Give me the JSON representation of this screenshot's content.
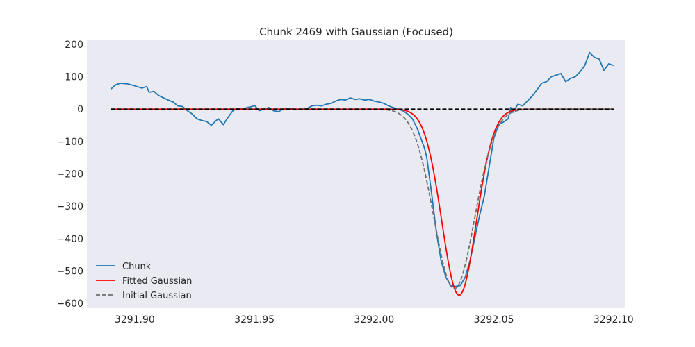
{
  "chart_data": {
    "type": "line",
    "title": "Chunk 2469 with Gaussian (Focused)",
    "xlabel": "",
    "ylabel": "",
    "xlim": [
      3291.88,
      3292.105
    ],
    "ylim": [
      -615,
      215
    ],
    "grid": false,
    "legend_position": "lower-left",
    "plot_background": "#eaeaf2",
    "x_ticks": [
      3291.9,
      3291.95,
      3292.0,
      3292.05,
      3292.1
    ],
    "x_tick_labels": [
      "3291.90",
      "3291.95",
      "3292.00",
      "3292.05",
      "3292.10"
    ],
    "y_ticks": [
      200,
      100,
      0,
      -100,
      -200,
      -300,
      -400,
      -500,
      -600
    ],
    "y_tick_labels": [
      "200",
      "100",
      "0",
      "−100",
      "−200",
      "−300",
      "−400",
      "−500",
      "−600"
    ],
    "series": [
      {
        "name": "Chunk",
        "color": "#1f77b4",
        "style": "solid",
        "points": [
          [
            3291.89,
            62
          ],
          [
            3291.892,
            75
          ],
          [
            3291.894,
            80
          ],
          [
            3291.897,
            78
          ],
          [
            3291.9,
            72
          ],
          [
            3291.903,
            65
          ],
          [
            3291.905,
            70
          ],
          [
            3291.906,
            52
          ],
          [
            3291.908,
            55
          ],
          [
            3291.91,
            42
          ],
          [
            3291.912,
            35
          ],
          [
            3291.914,
            28
          ],
          [
            3291.916,
            22
          ],
          [
            3291.918,
            10
          ],
          [
            3291.92,
            8
          ],
          [
            3291.922,
            -5
          ],
          [
            3291.924,
            -15
          ],
          [
            3291.926,
            -30
          ],
          [
            3291.928,
            -35
          ],
          [
            3291.93,
            -38
          ],
          [
            3291.932,
            -50
          ],
          [
            3291.934,
            -35
          ],
          [
            3291.935,
            -30
          ],
          [
            3291.937,
            -48
          ],
          [
            3291.939,
            -25
          ],
          [
            3291.941,
            -5
          ],
          [
            3291.943,
            2
          ],
          [
            3291.945,
            0
          ],
          [
            3291.947,
            5
          ],
          [
            3291.949,
            8
          ],
          [
            3291.95,
            12
          ],
          [
            3291.952,
            -5
          ],
          [
            3291.954,
            0
          ],
          [
            3291.956,
            5
          ],
          [
            3291.958,
            -5
          ],
          [
            3291.96,
            -8
          ],
          [
            3291.962,
            0
          ],
          [
            3291.965,
            3
          ],
          [
            3291.967,
            -2
          ],
          [
            3291.97,
            0
          ],
          [
            3291.972,
            2
          ],
          [
            3291.974,
            10
          ],
          [
            3291.976,
            12
          ],
          [
            3291.978,
            10
          ],
          [
            3291.98,
            15
          ],
          [
            3291.982,
            18
          ],
          [
            3291.984,
            25
          ],
          [
            3291.986,
            30
          ],
          [
            3291.988,
            28
          ],
          [
            3291.99,
            35
          ],
          [
            3291.992,
            30
          ],
          [
            3291.994,
            32
          ],
          [
            3291.996,
            28
          ],
          [
            3291.998,
            30
          ],
          [
            3292.0,
            25
          ],
          [
            3292.002,
            22
          ],
          [
            3292.004,
            18
          ],
          [
            3292.006,
            10
          ],
          [
            3292.008,
            5
          ],
          [
            3292.01,
            0
          ],
          [
            3292.012,
            -5
          ],
          [
            3292.014,
            -15
          ],
          [
            3292.016,
            -30
          ],
          [
            3292.018,
            -60
          ],
          [
            3292.02,
            -100
          ],
          [
            3292.021,
            -120
          ],
          [
            3292.022,
            -150
          ],
          [
            3292.024,
            -260
          ],
          [
            3292.026,
            -380
          ],
          [
            3292.028,
            -470
          ],
          [
            3292.03,
            -520
          ],
          [
            3292.032,
            -545
          ],
          [
            3292.034,
            -548
          ],
          [
            3292.036,
            -545
          ],
          [
            3292.038,
            -520
          ],
          [
            3292.04,
            -470
          ],
          [
            3292.042,
            -400
          ],
          [
            3292.044,
            -330
          ],
          [
            3292.046,
            -270
          ],
          [
            3292.048,
            -180
          ],
          [
            3292.05,
            -90
          ],
          [
            3292.052,
            -48
          ],
          [
            3292.054,
            -40
          ],
          [
            3292.056,
            -30
          ],
          [
            3292.057,
            5
          ],
          [
            3292.058,
            -10
          ],
          [
            3292.06,
            15
          ],
          [
            3292.062,
            10
          ],
          [
            3292.064,
            25
          ],
          [
            3292.066,
            40
          ],
          [
            3292.068,
            60
          ],
          [
            3292.07,
            80
          ],
          [
            3292.072,
            85
          ],
          [
            3292.074,
            100
          ],
          [
            3292.076,
            105
          ],
          [
            3292.078,
            110
          ],
          [
            3292.08,
            85
          ],
          [
            3292.082,
            95
          ],
          [
            3292.084,
            100
          ],
          [
            3292.086,
            115
          ],
          [
            3292.088,
            135
          ],
          [
            3292.09,
            175
          ],
          [
            3292.092,
            160
          ],
          [
            3292.094,
            155
          ],
          [
            3292.096,
            120
          ],
          [
            3292.098,
            140
          ],
          [
            3292.1,
            135
          ]
        ]
      },
      {
        "name": "Fitted Gaussian",
        "color": "#ff0000",
        "style": "solid",
        "amplitude": -575,
        "mean": 3292.0355,
        "sigma": 0.0072,
        "x_start": 3291.89,
        "x_end": 3292.1
      },
      {
        "name": "Initial Gaussian",
        "color": "#707070",
        "style": "dashed",
        "amplitude": -555,
        "mean": 3292.0335,
        "sigma": 0.0085,
        "x_start": 3291.89,
        "x_end": 3292.1
      },
      {
        "name": "",
        "color": "#000000",
        "style": "dashed",
        "points": [
          [
            3291.89,
            0
          ],
          [
            3292.1,
            0
          ]
        ]
      }
    ]
  }
}
